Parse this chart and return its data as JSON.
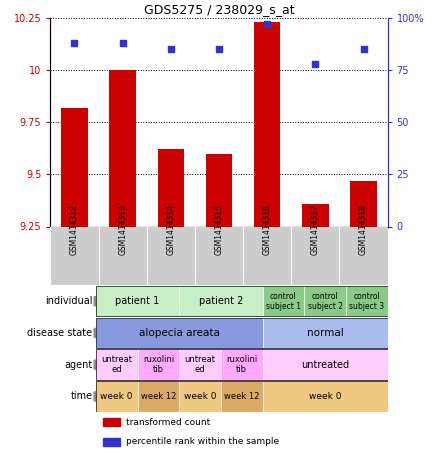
{
  "title": "GDS5275 / 238029_s_at",
  "samples": [
    "GSM1414312",
    "GSM1414313",
    "GSM1414314",
    "GSM1414315",
    "GSM1414316",
    "GSM1414317",
    "GSM1414318"
  ],
  "transformed_count": [
    9.82,
    10.0,
    9.62,
    9.6,
    10.23,
    9.36,
    9.47
  ],
  "percentile_rank": [
    88,
    88,
    85,
    85,
    97,
    78,
    85
  ],
  "ylim_left": [
    9.25,
    10.25
  ],
  "ylim_right": [
    0,
    100
  ],
  "yticks_left": [
    9.25,
    9.5,
    9.75,
    10.0,
    10.25
  ],
  "yticks_right": [
    0,
    25,
    50,
    75,
    100
  ],
  "ytick_labels_left": [
    "9.25",
    "9.5",
    "9.75",
    "10",
    "10.25"
  ],
  "ytick_labels_right": [
    "0",
    "25",
    "50",
    "75",
    "100%"
  ],
  "bar_color": "#cc0000",
  "dot_color": "#3333cc",
  "rows": [
    {
      "label": "individual",
      "cells": [
        {
          "text": "patient 1",
          "span": 2,
          "color": "#c8eec8",
          "fontsize": 7
        },
        {
          "text": "patient 2",
          "span": 2,
          "color": "#c8eec8",
          "fontsize": 7
        },
        {
          "text": "control\nsubject 1",
          "span": 1,
          "color": "#88cc88",
          "fontsize": 5.5
        },
        {
          "text": "control\nsubject 2",
          "span": 1,
          "color": "#88cc88",
          "fontsize": 5.5
        },
        {
          "text": "control\nsubject 3",
          "span": 1,
          "color": "#88cc88",
          "fontsize": 5.5
        }
      ]
    },
    {
      "label": "disease state",
      "cells": [
        {
          "text": "alopecia areata",
          "span": 4,
          "color": "#8899dd",
          "fontsize": 7.5
        },
        {
          "text": "normal",
          "span": 3,
          "color": "#aabbee",
          "fontsize": 7.5
        }
      ]
    },
    {
      "label": "agent",
      "cells": [
        {
          "text": "untreat\ned",
          "span": 1,
          "color": "#ffccff",
          "fontsize": 6
        },
        {
          "text": "ruxolini\ntib",
          "span": 1,
          "color": "#ffaaff",
          "fontsize": 6
        },
        {
          "text": "untreat\ned",
          "span": 1,
          "color": "#ffccff",
          "fontsize": 6
        },
        {
          "text": "ruxolini\ntib",
          "span": 1,
          "color": "#ffaaff",
          "fontsize": 6
        },
        {
          "text": "untreated",
          "span": 3,
          "color": "#ffccff",
          "fontsize": 7
        }
      ]
    },
    {
      "label": "time",
      "cells": [
        {
          "text": "week 0",
          "span": 1,
          "color": "#f0c880",
          "fontsize": 6.5
        },
        {
          "text": "week 12",
          "span": 1,
          "color": "#ddaa66",
          "fontsize": 6
        },
        {
          "text": "week 0",
          "span": 1,
          "color": "#f0c880",
          "fontsize": 6.5
        },
        {
          "text": "week 12",
          "span": 1,
          "color": "#ddaa66",
          "fontsize": 6
        },
        {
          "text": "week 0",
          "span": 3,
          "color": "#f0c880",
          "fontsize": 6.5
        }
      ]
    }
  ],
  "legend": [
    {
      "color": "#cc0000",
      "label": "transformed count"
    },
    {
      "color": "#3333cc",
      "label": "percentile rank within the sample"
    }
  ],
  "sample_box_color": "#cccccc",
  "label_arrow_color": "#888888"
}
